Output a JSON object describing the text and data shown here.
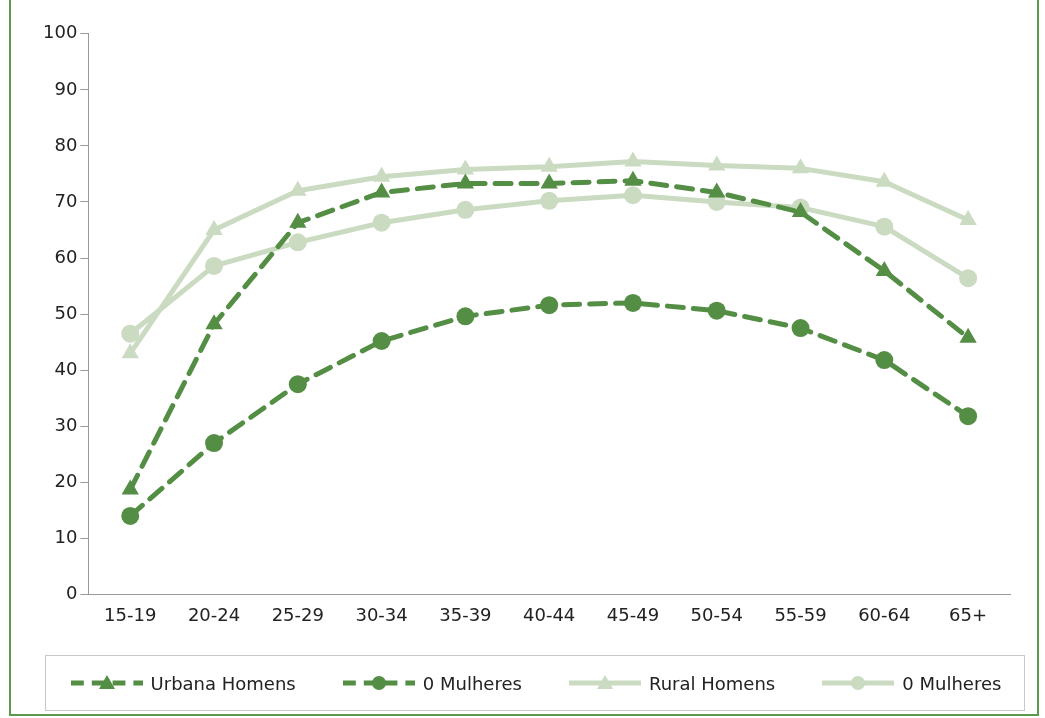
{
  "chart_data": {
    "type": "line",
    "categories": [
      "15-19",
      "20-24",
      "25-29",
      "30-34",
      "35-39",
      "40-44",
      "45-49",
      "50-54",
      "55-59",
      "60-64",
      "65+"
    ],
    "series": [
      {
        "name": "Urbana Homens",
        "color": "#548e45",
        "marker": "triangle",
        "line_style": "dashed",
        "values": [
          18.7,
          48.2,
          66.3,
          71.7,
          73.3,
          73.3,
          73.8,
          71.7,
          68.2,
          57.7,
          45.8
        ]
      },
      {
        "name": "0 Mulheres",
        "color": "#548e45",
        "marker": "circle",
        "line_style": "dashed",
        "values": [
          14,
          27,
          37.5,
          45.2,
          49.6,
          51.6,
          52,
          50.6,
          47.5,
          41.8,
          31.8
        ]
      },
      {
        "name": "Rural Homens",
        "color": "#cadbc1",
        "marker": "triangle",
        "line_style": "solid",
        "values": [
          43,
          65,
          72,
          74.5,
          75.8,
          76.3,
          77.2,
          76.5,
          76,
          73.6,
          66.8
        ]
      },
      {
        "name": "0 Mulheres",
        "color": "#cadbc1",
        "marker": "circle",
        "line_style": "solid",
        "values": [
          46.5,
          58.6,
          62.8,
          66.3,
          68.6,
          70.2,
          71.2,
          70,
          69,
          65.6,
          56.4
        ]
      }
    ],
    "ylim": [
      0,
      100
    ],
    "yticks": [
      0,
      10,
      20,
      30,
      40,
      50,
      60,
      70,
      80,
      90,
      100
    ],
    "grid": false,
    "legend": "bottom"
  }
}
